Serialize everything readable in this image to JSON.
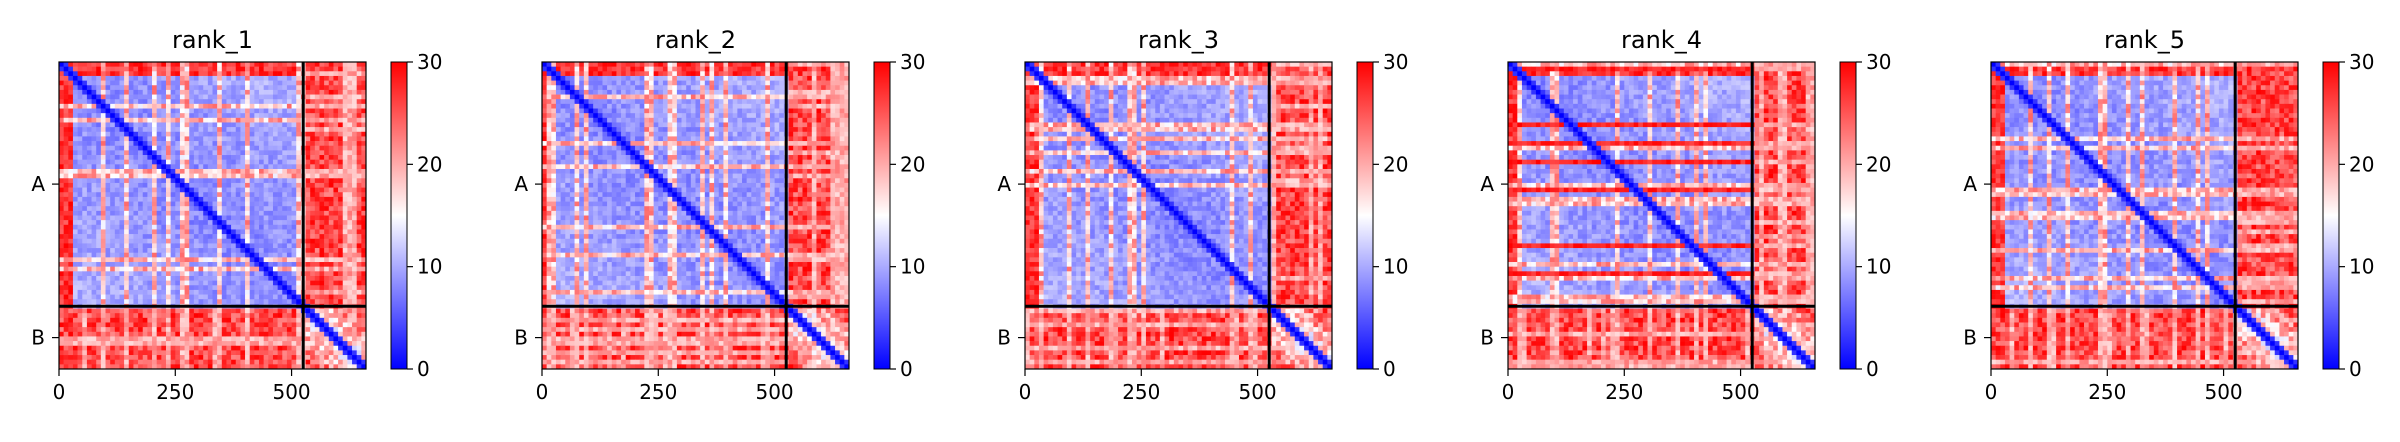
{
  "chart_data": [
    {
      "type": "heatmap",
      "title": "rank_1",
      "xticks": [
        0,
        250,
        500
      ],
      "yticks": [
        "A",
        "B"
      ],
      "chain_boundary": 525,
      "total_length": 660,
      "colorbar": {
        "min": 0,
        "max": 30,
        "ticks": [
          0,
          10,
          20,
          30
        ],
        "colormap": "bwr"
      }
    },
    {
      "type": "heatmap",
      "title": "rank_2",
      "xticks": [
        0,
        250,
        500
      ],
      "yticks": [
        "A",
        "B"
      ],
      "chain_boundary": 525,
      "total_length": 660,
      "colorbar": {
        "min": 0,
        "max": 30,
        "ticks": [
          0,
          10,
          20,
          30
        ],
        "colormap": "bwr"
      }
    },
    {
      "type": "heatmap",
      "title": "rank_3",
      "xticks": [
        0,
        250,
        500
      ],
      "yticks": [
        "A",
        "B"
      ],
      "chain_boundary": 525,
      "total_length": 660,
      "colorbar": {
        "min": 0,
        "max": 30,
        "ticks": [
          0,
          10,
          20,
          30
        ],
        "colormap": "bwr"
      }
    },
    {
      "type": "heatmap",
      "title": "rank_4",
      "xticks": [
        0,
        250,
        500
      ],
      "yticks": [
        "A",
        "B"
      ],
      "chain_boundary": 525,
      "total_length": 660,
      "colorbar": {
        "min": 0,
        "max": 30,
        "ticks": [
          0,
          10,
          20,
          30
        ],
        "colormap": "bwr"
      }
    },
    {
      "type": "heatmap",
      "title": "rank_5",
      "xticks": [
        0,
        250,
        500
      ],
      "yticks": [
        "A",
        "B"
      ],
      "chain_boundary": 525,
      "total_length": 660,
      "colorbar": {
        "min": 0,
        "max": 30,
        "ticks": [
          0,
          10,
          20,
          30
        ],
        "colormap": "bwr"
      }
    }
  ]
}
